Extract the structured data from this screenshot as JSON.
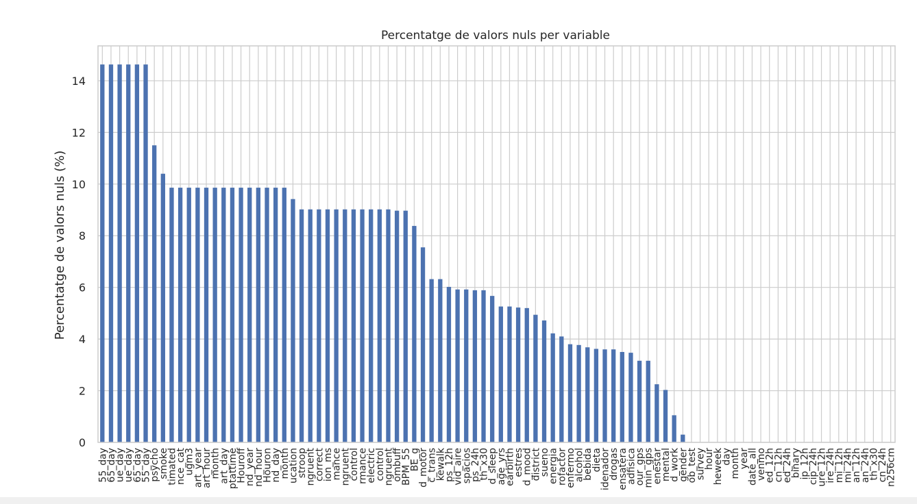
{
  "chart_data": {
    "type": "bar",
    "title": "Percentatge de valors nuls per variable",
    "xlabel": "",
    "ylabel": "Percentatge de valors nuls (%)",
    "ylim": [
      0,
      15.35
    ],
    "yticks": [
      0,
      2,
      4,
      6,
      8,
      10,
      12,
      14
    ],
    "grid": true,
    "bar_color": "#4c72b0",
    "categories": [
      "55_day",
      "65_day",
      "ue_day",
      "ue_day",
      "65_day",
      "55_day",
      "psycho",
      "smoke",
      "timated",
      "nce_cat",
      "ugm3",
      "art_year",
      "art_hour",
      "month",
      "art_day",
      "ptattime",
      "Houroff",
      "nd_year",
      "nd_hour",
      "Houron",
      "nd_day",
      "month",
      "ucation",
      "stroop",
      "ngruent",
      "correct",
      "ion_ms",
      "mance",
      "ngruent",
      "control",
      "rmance",
      "electric",
      "control",
      "ngruent",
      "ombuff",
      "BPM_55",
      "BE_g",
      "d_motor",
      "c_trans",
      "kewalk",
      "ps_12h",
      "vid_aire",
      "spacios",
      "ps_24h",
      "th_x30",
      "d_sleep",
      "age_yrs",
      "earbirth",
      "estres",
      "d_mood",
      "district",
      "sueno",
      "energia",
      "rofactor",
      "enfermo",
      "alcohol",
      "bebida",
      "dieta",
      "idenador",
      "drogas",
      "ensatera",
      "adfisica",
      "our_gps",
      "min_gps",
      "enestar",
      "mental",
      "d_work",
      "gender",
      "ob_test",
      "survey",
      "hour",
      "heweek",
      "day",
      "month",
      "year",
      "date_all",
      "venmo",
      "ed_12h",
      "cn_12h",
      "ed_24h",
      "binary",
      "ip_12h",
      "cip_24h",
      "ure_12h",
      "ire_24h",
      "mi_12h",
      "mi_24h",
      "an_12h",
      "an_24h",
      "th_x30",
      "cn_24h",
      "n256cm"
    ],
    "values": [
      14.63,
      14.63,
      14.63,
      14.63,
      14.63,
      14.63,
      11.5,
      10.4,
      9.86,
      9.86,
      9.86,
      9.86,
      9.86,
      9.86,
      9.86,
      9.86,
      9.86,
      9.86,
      9.86,
      9.86,
      9.86,
      9.86,
      9.42,
      9.02,
      9.02,
      9.02,
      9.02,
      9.02,
      9.02,
      9.02,
      9.02,
      9.02,
      9.02,
      9.02,
      8.97,
      8.97,
      8.38,
      7.55,
      6.32,
      6.32,
      6.02,
      5.92,
      5.92,
      5.89,
      5.89,
      5.67,
      5.26,
      5.26,
      5.22,
      5.2,
      4.94,
      4.72,
      4.22,
      4.1,
      3.8,
      3.77,
      3.68,
      3.62,
      3.6,
      3.6,
      3.5,
      3.47,
      3.16,
      3.16,
      2.25,
      2.03,
      1.05,
      0.3,
      0,
      0,
      0,
      0,
      0,
      0,
      0,
      0,
      0,
      0,
      0,
      0,
      0,
      0,
      0,
      0,
      0,
      0,
      0,
      0,
      0,
      0,
      0,
      0
    ]
  }
}
